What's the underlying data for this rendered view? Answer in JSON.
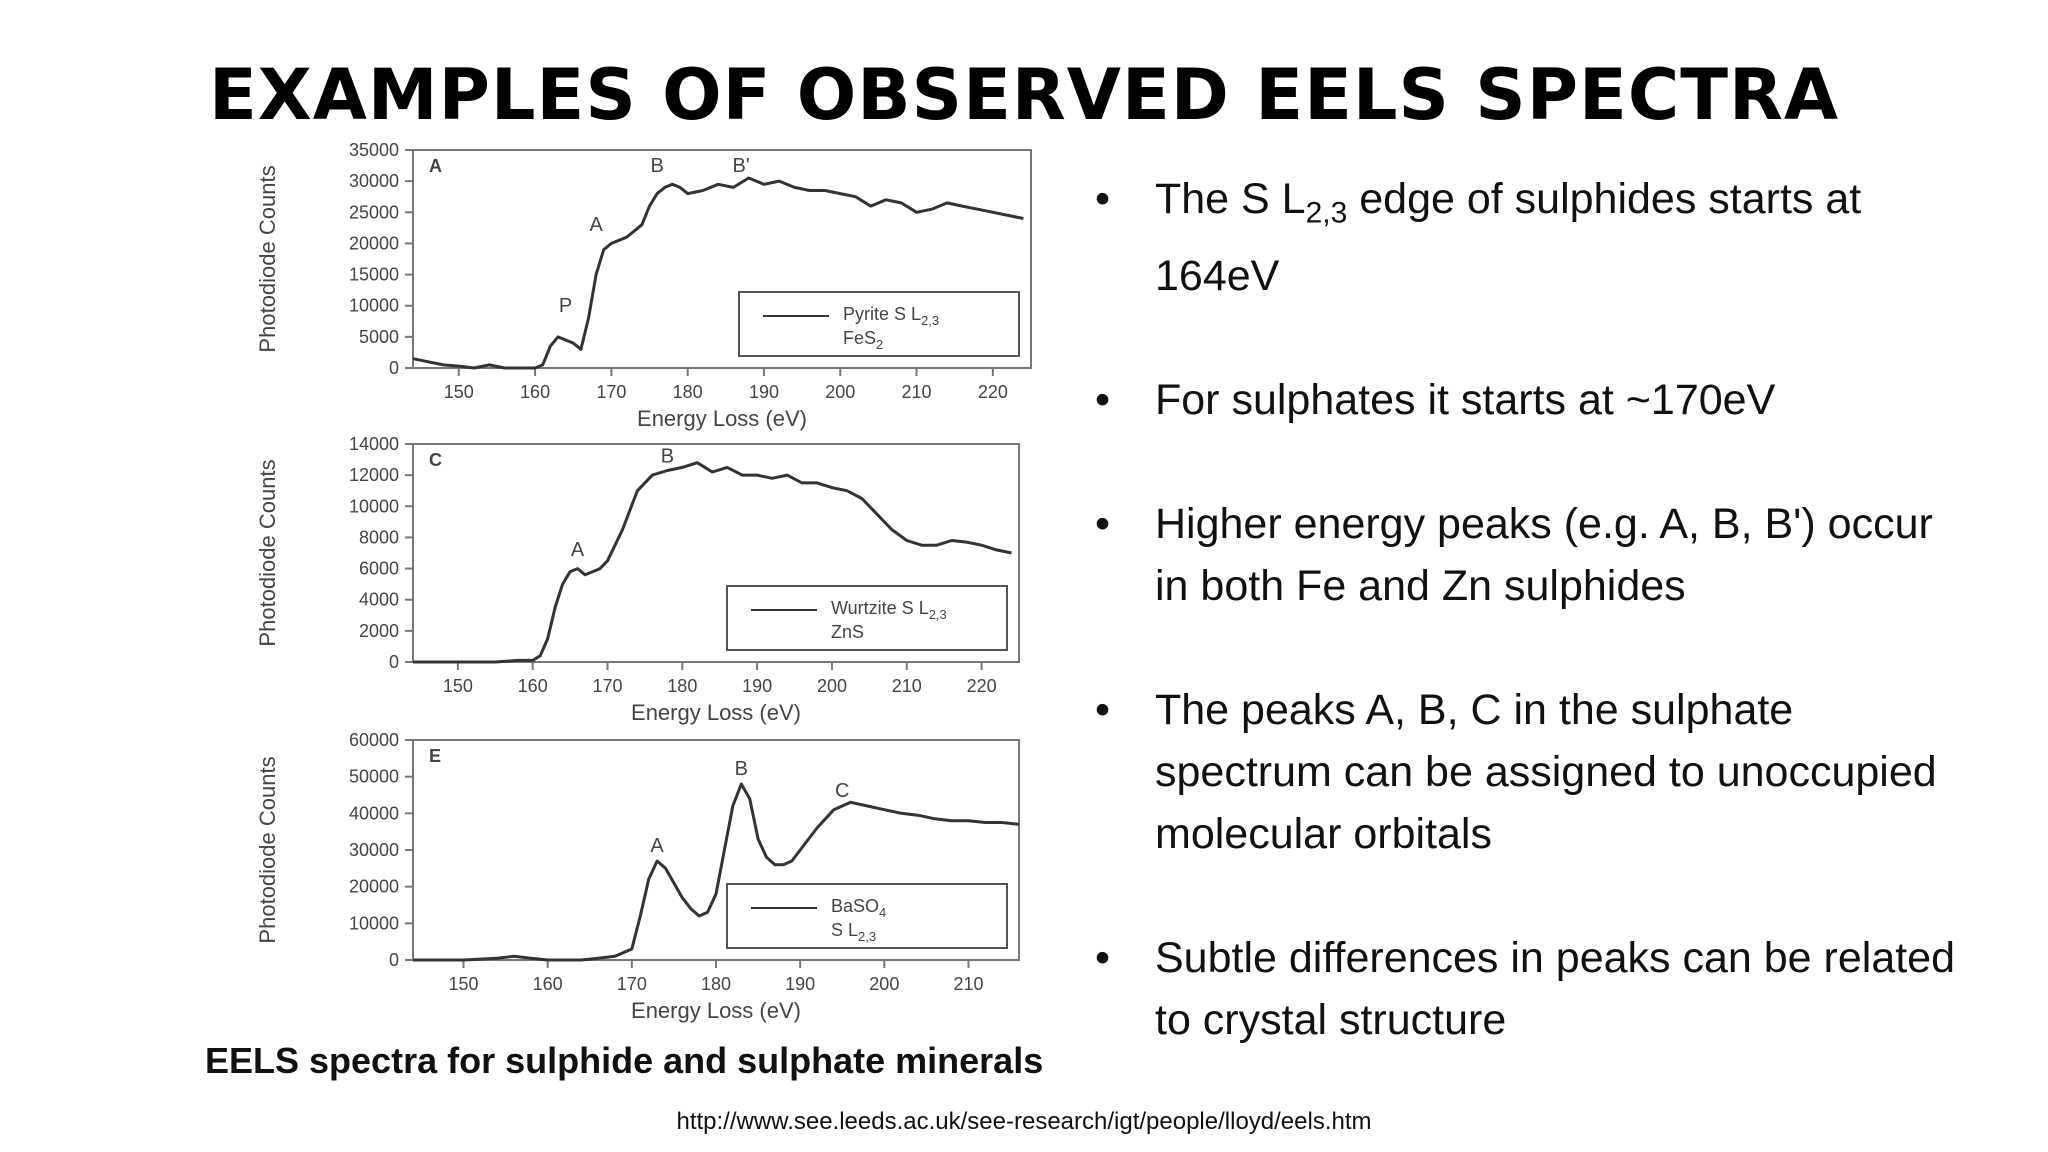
{
  "slide": {
    "title": "EXAMPLES OF OBSERVED EELS SPECTRA",
    "caption": "EELS spectra for sulphide and sulphate minerals",
    "source_url": "http://www.see.leeds.ac.uk/see-research/igt/people/lloyd/eels.htm",
    "bullets": [
      {
        "pre": "The S L",
        "sub": "2,3",
        "post": " edge of sulphides starts at",
        "line2": "164eV"
      },
      {
        "pre": "For sulphates it starts at ~170eV",
        "sub": "",
        "post": "",
        "line2": ""
      },
      {
        "pre": "Higher energy peaks (e.g. A, B, B') occur",
        "sub": "",
        "post": "",
        "line2": "in both Fe and Zn sulphides"
      },
      {
        "pre": "The peaks A, B, C in the sulphate",
        "sub": "",
        "post": "",
        "line2": "spectrum can be assigned to unoccupied",
        "line3": "molecular orbitals"
      },
      {
        "pre": "Subtle differences in peaks can be related",
        "sub": "",
        "post": "",
        "line2": "to crystal structure"
      }
    ]
  },
  "chart_data": [
    {
      "type": "line",
      "panel": "A",
      "xlabel": "Energy Loss (eV)",
      "ylabel": "Photodiode Counts",
      "xlim": [
        144,
        225
      ],
      "ylim": [
        0,
        35000
      ],
      "xticks": [
        150,
        160,
        170,
        180,
        190,
        200,
        210,
        220
      ],
      "yticks": [
        0,
        5000,
        10000,
        15000,
        20000,
        25000,
        30000,
        35000
      ],
      "legend": {
        "line1": "Pyrite S L",
        "sub1": "2,3",
        "line2": "FeS",
        "sub2": "2",
        "placement": "bottom-right"
      },
      "peaks": [
        {
          "label": "P",
          "x": 164,
          "y": 9000
        },
        {
          "label": "A",
          "x": 168,
          "y": 22000
        },
        {
          "label": "B",
          "x": 176,
          "y": 31500
        },
        {
          "label": "B'",
          "x": 187,
          "y": 31500
        }
      ],
      "series": [
        {
          "x": [
            144,
            146,
            148,
            150,
            152,
            154,
            156,
            158,
            160,
            161,
            162,
            163,
            164,
            165,
            166,
            167,
            168,
            169,
            170,
            171,
            172,
            173,
            174,
            175,
            176,
            177,
            178,
            179,
            180,
            182,
            184,
            186,
            188,
            190,
            192,
            194,
            196,
            198,
            200,
            202,
            204,
            206,
            208,
            210,
            212,
            214,
            216,
            218,
            220,
            222,
            224
          ],
          "y": [
            1500,
            1000,
            500,
            300,
            0,
            500,
            0,
            0,
            0,
            500,
            3500,
            5000,
            4500,
            4000,
            3000,
            8000,
            15000,
            19000,
            20000,
            20500,
            21000,
            22000,
            23000,
            26000,
            28000,
            29000,
            29500,
            29000,
            28000,
            28500,
            29500,
            29000,
            30500,
            29500,
            30000,
            29000,
            28500,
            28500,
            28000,
            27500,
            26000,
            27000,
            26500,
            25000,
            25500,
            26500,
            26000,
            25500,
            25000,
            24500,
            24000
          ]
        }
      ]
    },
    {
      "type": "line",
      "panel": "C",
      "xlabel": "Energy Loss (eV)",
      "ylabel": "Photodiode Counts",
      "xlim": [
        144,
        225
      ],
      "ylim": [
        0,
        14000
      ],
      "xticks": [
        150,
        160,
        170,
        180,
        190,
        200,
        210,
        220
      ],
      "yticks": [
        0,
        2000,
        4000,
        6000,
        8000,
        10000,
        12000,
        14000
      ],
      "legend": {
        "line1": "Wurtzite S L",
        "sub1": "2,3",
        "line2": "ZnS",
        "sub2": "",
        "placement": "bottom-right"
      },
      "peaks": [
        {
          "label": "A",
          "x": 166,
          "y": 6800
        },
        {
          "label": "B",
          "x": 178,
          "y": 12800
        }
      ],
      "series": [
        {
          "x": [
            144,
            150,
            155,
            158,
            160,
            161,
            162,
            163,
            164,
            165,
            166,
            167,
            168,
            169,
            170,
            172,
            174,
            176,
            178,
            180,
            182,
            184,
            186,
            188,
            190,
            192,
            194,
            196,
            198,
            200,
            202,
            204,
            206,
            208,
            210,
            212,
            214,
            216,
            218,
            220,
            222,
            224
          ],
          "y": [
            0,
            0,
            0,
            100,
            100,
            400,
            1500,
            3500,
            5000,
            5800,
            6000,
            5600,
            5800,
            6000,
            6500,
            8500,
            11000,
            12000,
            12300,
            12500,
            12800,
            12200,
            12500,
            12000,
            12000,
            11800,
            12000,
            11500,
            11500,
            11200,
            11000,
            10500,
            9500,
            8500,
            7800,
            7500,
            7500,
            7800,
            7700,
            7500,
            7200,
            7000
          ]
        }
      ]
    },
    {
      "type": "line",
      "panel": "E",
      "xlabel": "Energy Loss (eV)",
      "ylabel": "Photodiode Counts",
      "xlim": [
        144,
        216
      ],
      "ylim": [
        0,
        60000
      ],
      "xticks": [
        150,
        160,
        170,
        180,
        190,
        200,
        210
      ],
      "yticks": [
        0,
        10000,
        20000,
        30000,
        40000,
        50000,
        60000
      ],
      "legend": {
        "line1": "BaSO",
        "sub1": "4",
        "line2": "S L",
        "sub2": "2,3",
        "placement": "bottom-right"
      },
      "peaks": [
        {
          "label": "A",
          "x": 173,
          "y": 29500
        },
        {
          "label": "B",
          "x": 183,
          "y": 50500
        },
        {
          "label": "C",
          "x": 195,
          "y": 44500
        }
      ],
      "series": [
        {
          "x": [
            144,
            150,
            154,
            156,
            158,
            160,
            164,
            166,
            168,
            170,
            171,
            172,
            173,
            174,
            175,
            176,
            177,
            178,
            179,
            180,
            181,
            182,
            183,
            184,
            185,
            186,
            187,
            188,
            189,
            190,
            192,
            194,
            196,
            198,
            200,
            202,
            204,
            206,
            208,
            210,
            212,
            214,
            216
          ],
          "y": [
            0,
            0,
            500,
            1000,
            500,
            0,
            0,
            500,
            1000,
            3000,
            12000,
            22000,
            27000,
            25000,
            21000,
            17000,
            14000,
            12000,
            13000,
            18000,
            30000,
            42000,
            48000,
            44000,
            33000,
            28000,
            26000,
            26000,
            27000,
            30000,
            36000,
            41000,
            43000,
            42000,
            41000,
            40000,
            39500,
            38500,
            38000,
            38000,
            37500,
            37500,
            37000
          ]
        }
      ]
    }
  ]
}
